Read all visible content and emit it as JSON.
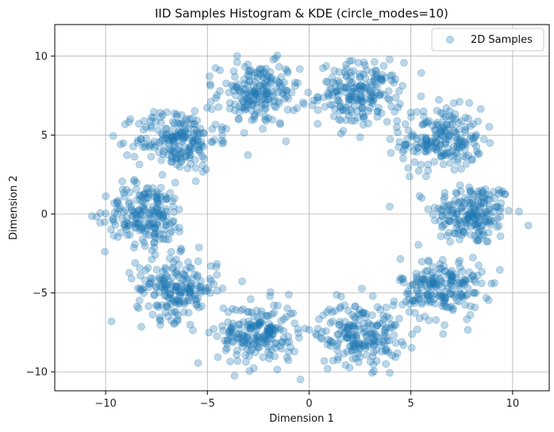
{
  "chart_data": {
    "type": "scatter",
    "title": "IID Samples Histogram & KDE (circle_modes=10)",
    "xlabel": "Dimension 1",
    "ylabel": "Dimension 2",
    "xlim": [
      -12.5,
      11.8
    ],
    "ylim": [
      -11.2,
      12.0
    ],
    "xticks": [
      -10,
      -5,
      0,
      5,
      10
    ],
    "yticks": [
      -10,
      -5,
      0,
      5,
      10
    ],
    "xtick_labels": [
      "−10",
      "−5",
      "0",
      "5",
      "10"
    ],
    "ytick_labels": [
      "−10",
      "−5",
      "0",
      "5",
      "10"
    ],
    "grid": true,
    "legend_position": "top-right",
    "point_color": "#1f77b4",
    "point_alpha": 0.3,
    "series": [
      {
        "name": "2D Samples",
        "mode_centers": [
          [
            8.0,
            0.0
          ],
          [
            6.5,
            4.7
          ],
          [
            2.5,
            7.6
          ],
          [
            -2.5,
            7.6
          ],
          [
            -6.5,
            4.7
          ],
          [
            -8.0,
            0.0
          ],
          [
            -6.5,
            -4.7
          ],
          [
            -2.5,
            -7.6
          ],
          [
            2.5,
            -7.6
          ],
          [
            6.5,
            -4.7
          ]
        ],
        "points_per_mode": 200,
        "spread_std": 1.0
      }
    ]
  }
}
